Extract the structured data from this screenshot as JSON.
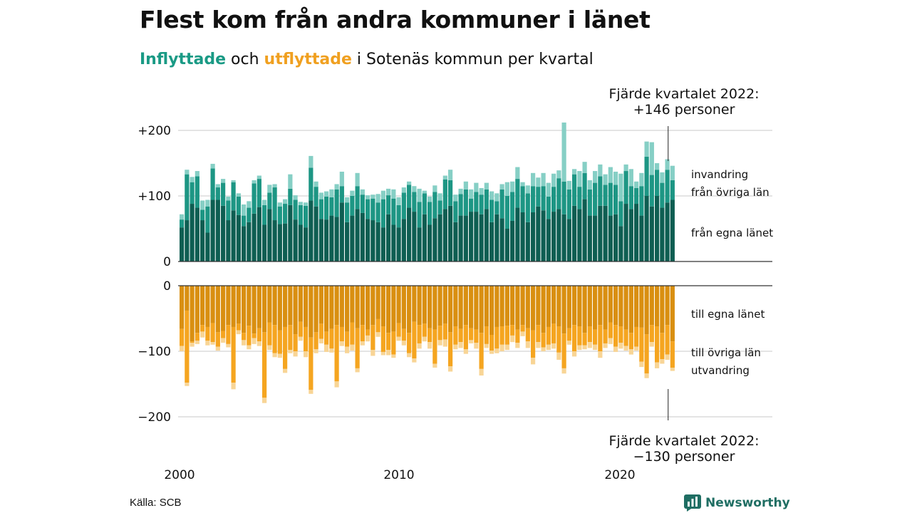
{
  "title": "Flest kom från andra kommuner i länet",
  "subtitle": {
    "in_label": "Inflyttade",
    "connector": "och",
    "out_label": "utflyttade",
    "rest": "i Sotenäs kommun per kvartal"
  },
  "source": "Källa: SCB",
  "brand": {
    "name": "Newsworthy",
    "icon": "bar-chart-logo-icon"
  },
  "colors": {
    "in_egna": "#0e5e52",
    "in_ovriga": "#1d9684",
    "in_invandring": "#86cfc5",
    "out_egna": "#d98f11",
    "out_ovriga": "#f5a520",
    "out_utvandring": "#f8d596",
    "grid": "#dcdcdc",
    "axis": "#333333"
  },
  "annotations": {
    "top_line1": "Fjärde kvartalet 2022:",
    "top_line2": "+146 personer",
    "bottom_line1": "Fjärde kvartalet 2022:",
    "bottom_line2": "−130 personer"
  },
  "chart_data": {
    "type": "bar",
    "stacked": true,
    "diverging": true,
    "period": "kvartal 2000 K1 – 2022 K4",
    "x_ticks": [
      "2000",
      "2010",
      "2020"
    ],
    "top_panel": {
      "y_ticks": [
        "+200",
        "+100",
        "0"
      ],
      "ylim": [
        0,
        200
      ],
      "series": [
        {
          "name": "från egna länet",
          "values": [
            52,
            63,
            88,
            82,
            63,
            44,
            94,
            94,
            85,
            63,
            78,
            71,
            54,
            60,
            73,
            83,
            56,
            80,
            63,
            57,
            58,
            86,
            64,
            56,
            52,
            93,
            84,
            65,
            64,
            70,
            68,
            90,
            60,
            70,
            80,
            74,
            65,
            63,
            60,
            52,
            72,
            56,
            52,
            65,
            82,
            76,
            52,
            72,
            56,
            66,
            72,
            80,
            85,
            60,
            70,
            70,
            76,
            76,
            72,
            80,
            60,
            72,
            66,
            50,
            62,
            82,
            75,
            60,
            75,
            84,
            78,
            65,
            76,
            80,
            72,
            65,
            85,
            80,
            95,
            70,
            70,
            85,
            85,
            70,
            72,
            54,
            88,
            80,
            88,
            70,
            100,
            84,
            100,
            82,
            90,
            94
          ]
        },
        {
          "name": "från övriga län",
          "values": [
            12,
            70,
            33,
            48,
            16,
            40,
            48,
            19,
            35,
            30,
            43,
            28,
            16,
            22,
            46,
            43,
            30,
            25,
            50,
            27,
            30,
            25,
            30,
            30,
            33,
            50,
            30,
            30,
            35,
            28,
            42,
            25,
            30,
            30,
            35,
            28,
            30,
            33,
            30,
            43,
            29,
            40,
            34,
            40,
            35,
            30,
            39,
            32,
            35,
            40,
            21,
            45,
            39,
            32,
            33,
            40,
            20,
            30,
            30,
            30,
            34,
            20,
            44,
            50,
            44,
            44,
            40,
            44,
            40,
            30,
            37,
            34,
            38,
            47,
            50,
            45,
            48,
            34,
            40,
            40,
            50,
            45,
            32,
            50,
            45,
            38,
            50,
            35,
            24,
            45,
            60,
            48,
            40,
            38,
            50,
            30
          ]
        },
        {
          "name": "invandring",
          "values": [
            8,
            7,
            8,
            8,
            14,
            10,
            7,
            5,
            6,
            6,
            3,
            5,
            17,
            10,
            5,
            5,
            8,
            12,
            5,
            6,
            7,
            22,
            7,
            5,
            5,
            18,
            8,
            10,
            8,
            12,
            8,
            22,
            8,
            8,
            20,
            8,
            6,
            6,
            13,
            13,
            10,
            14,
            12,
            8,
            5,
            9,
            20,
            4,
            8,
            10,
            11,
            6,
            16,
            10,
            8,
            12,
            14,
            14,
            10,
            10,
            13,
            12,
            8,
            21,
            16,
            18,
            6,
            12,
            20,
            14,
            20,
            21,
            20,
            12,
            90,
            13,
            8,
            24,
            17,
            14,
            18,
            18,
            16,
            24,
            20,
            42,
            10,
            26,
            10,
            20,
            23,
            50,
            10,
            16,
            16,
            22
          ]
        }
      ]
    },
    "bottom_panel": {
      "y_ticks": [
        "0",
        "−100",
        "−200"
      ],
      "ylim": [
        -200,
        0
      ],
      "series": [
        {
          "name": "till egna länet",
          "values": [
            -66,
            -38,
            -85,
            -72,
            -60,
            -63,
            -57,
            -71,
            -69,
            -60,
            -63,
            -58,
            -72,
            -61,
            -73,
            -65,
            -71,
            -56,
            -60,
            -68,
            -63,
            -60,
            -74,
            -55,
            -63,
            -79,
            -71,
            -58,
            -70,
            -66,
            -60,
            -63,
            -70,
            -56,
            -65,
            -60,
            -67,
            -60,
            -51,
            -62,
            -72,
            -70,
            -57,
            -66,
            -72,
            -55,
            -60,
            -58,
            -65,
            -67,
            -61,
            -58,
            -71,
            -62,
            -66,
            -60,
            -65,
            -67,
            -72,
            -62,
            -75,
            -63,
            -62,
            -61,
            -60,
            -67,
            -60,
            -65,
            -68,
            -60,
            -72,
            -63,
            -58,
            -62,
            -73,
            -65,
            -60,
            -62,
            -72,
            -62,
            -67,
            -60,
            -67,
            -56,
            -60,
            -62,
            -67,
            -72,
            -63,
            -64,
            -74,
            -60,
            -62,
            -72,
            -60,
            -85
          ]
        },
        {
          "name": "till övriga län",
          "values": [
            -26,
            -110,
            -2,
            -12,
            -10,
            -21,
            -29,
            -22,
            -11,
            -29,
            -85,
            -10,
            -11,
            -30,
            -7,
            -20,
            -100,
            -35,
            -43,
            -36,
            -64,
            -38,
            -26,
            -23,
            -37,
            -80,
            -26,
            -23,
            -20,
            -30,
            -86,
            -22,
            -23,
            -34,
            -61,
            -25,
            -9,
            -38,
            -20,
            -39,
            -26,
            -35,
            -21,
            -18,
            -31,
            -56,
            -28,
            -20,
            -21,
            -52,
            -22,
            -24,
            -52,
            -28,
            -20,
            -37,
            -18,
            -20,
            -55,
            -27,
            -24,
            -33,
            -28,
            -29,
            -16,
            -20,
            -10,
            -20,
            -42,
            -26,
            -22,
            -27,
            -30,
            -40,
            -53,
            -19,
            -40,
            -29,
            -19,
            -24,
            -23,
            -40,
            -21,
            -24,
            -33,
            -25,
            -25,
            -25,
            -30,
            -52,
            -60,
            -26,
            -55,
            -40,
            -45,
            -40
          ]
        },
        {
          "name": "utvandring",
          "values": [
            -8,
            -5,
            -6,
            -5,
            -9,
            -7,
            -4,
            -6,
            -7,
            -5,
            -10,
            -6,
            -8,
            -6,
            -9,
            -7,
            -8,
            -7,
            -6,
            -6,
            -6,
            -5,
            -8,
            -6,
            -9,
            -6,
            -6,
            -7,
            -11,
            -6,
            -9,
            -7,
            -10,
            -9,
            -6,
            -6,
            -9,
            -9,
            -7,
            -5,
            -8,
            -5,
            -6,
            -7,
            -6,
            -6,
            -8,
            -7,
            -10,
            -6,
            -8,
            -11,
            -8,
            -7,
            -9,
            -7,
            -5,
            -9,
            -10,
            -6,
            -5,
            -7,
            -10,
            -8,
            -10,
            -8,
            -7,
            -10,
            -10,
            -9,
            -6,
            -8,
            -8,
            -11,
            -8,
            -6,
            -8,
            -7,
            -6,
            -9,
            -8,
            -10,
            -7,
            -9,
            -8,
            -9,
            -7,
            -8,
            -6,
            -8,
            -7,
            -7,
            -9,
            -7,
            -8,
            -5
          ]
        }
      ]
    },
    "series_labels": {
      "top": [
        "invandring",
        "från övriga län",
        "från egna länet"
      ],
      "bottom": [
        "till egna länet",
        "till övriga län",
        "utvandring"
      ]
    }
  }
}
